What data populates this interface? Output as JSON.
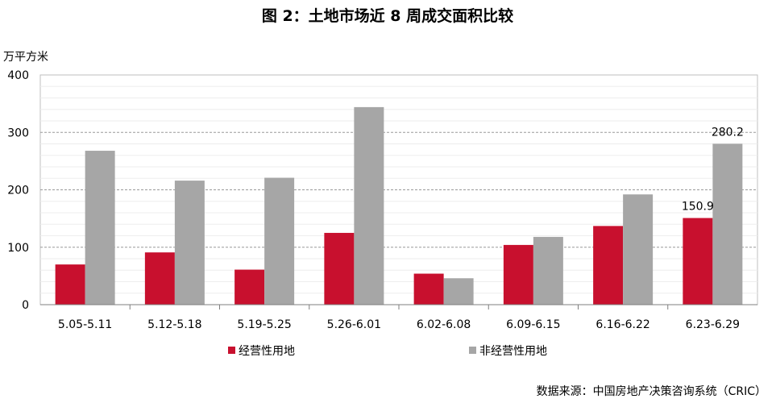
{
  "chart_data": {
    "type": "bar",
    "title": "图 2：土地市场近 8 周成交面积比较",
    "ylabel": "万平方米",
    "xlabel": "",
    "ylim": [
      0,
      400
    ],
    "yticks": [
      0,
      100,
      200,
      300,
      400
    ],
    "grid": true,
    "legend_position": "bottom",
    "categories": [
      "5.05-5.11",
      "5.12-5.18",
      "5.19-5.25",
      "5.26-6.01",
      "6.02-6.08",
      "6.09-6.15",
      "6.16-6.22",
      "6.23-6.29"
    ],
    "series": [
      {
        "name": "经营性用地",
        "color": "#c8102e",
        "values": [
          70,
          91,
          61,
          125,
          54,
          104,
          137,
          150.9
        ],
        "data_labels": [
          "",
          "",
          "",
          "",
          "",
          "",
          "",
          "150.9"
        ]
      },
      {
        "name": "非经营性用地",
        "color": "#a6a6a6",
        "values": [
          268,
          216,
          221,
          344,
          46,
          118,
          192,
          280.2
        ],
        "data_labels": [
          "",
          "",
          "",
          "",
          "",
          "",
          "",
          "280.2"
        ]
      }
    ],
    "source": "数据来源：中国房地产决策咨询系统（CRIC）"
  }
}
